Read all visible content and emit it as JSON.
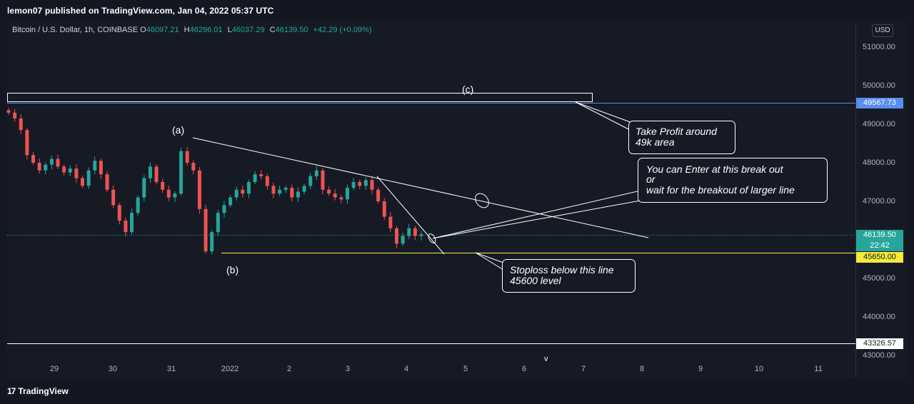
{
  "header": {
    "published": "lemon07 published on TradingView.com, Jan 04, 2022 05:37 UTC"
  },
  "symbol": {
    "name": "Bitcoin / U.S. Dollar, 1h, COINBASE",
    "o_label": "O",
    "o": "46097.21",
    "h_label": "H",
    "h": "46296.01",
    "l_label": "L",
    "l": "46037.29",
    "c_label": "C",
    "c": "46139.50",
    "change": "+42.29 (+0.09%)"
  },
  "axis": {
    "currency": "USD",
    "y_ticks": [
      "51000.00",
      "50000.00",
      "49000.00",
      "48000.00",
      "47000.00",
      "45000.00",
      "44000.00",
      "43000.00"
    ],
    "x_ticks": [
      "29",
      "30",
      "31",
      "2022",
      "2",
      "3",
      "4",
      "5",
      "6",
      "7",
      "8",
      "9",
      "10",
      "11"
    ]
  },
  "price_labels": {
    "blue": "49567.73",
    "current": "46139.50",
    "countdown": "22:42",
    "yellow": "45650.00",
    "white": "43326.57"
  },
  "annotations": {
    "wave_a": "(a)",
    "wave_b": "(b)",
    "wave_c": "(c)",
    "tp_line1": "Take Profit around",
    "tp_line2": "49k area",
    "enter_line1": "You can Enter at this break out",
    "enter_line2": "or",
    "enter_line3": "wait for the breakout of larger line",
    "sl_line1": "Stoploss below this line",
    "sl_line2": "45600 level",
    "cut_label": "v"
  },
  "footer": {
    "brand": "TradingView",
    "logo_mark": "17"
  },
  "colors": {
    "background": "#131722",
    "up": "#26a69a",
    "down": "#ef5350",
    "blue_line": "#5b8def",
    "yellow_line": "#f5eb3d",
    "white_line": "#ffffff"
  },
  "chart_data": {
    "type": "candlestick",
    "symbol": "Bitcoin / U.S. Dollar",
    "interval": "1h",
    "y_range": [
      42800,
      51600
    ],
    "x_categories": [
      "29",
      "30",
      "31",
      "2022",
      "2",
      "3",
      "4",
      "5",
      "6",
      "7",
      "8",
      "9",
      "10",
      "11"
    ],
    "horizontal_levels": [
      49567.73,
      45650.0,
      43326.57
    ],
    "last_price": 46139.5,
    "closes": [
      49300,
      49150,
      48850,
      48200,
      48000,
      47800,
      47950,
      48100,
      47900,
      47750,
      47850,
      47600,
      47400,
      47800,
      48050,
      47700,
      47300,
      46900,
      46500,
      46200,
      46700,
      47100,
      47600,
      47900,
      47500,
      47300,
      47100,
      47200,
      48300,
      48000,
      47800,
      46800,
      45700,
      46200,
      46700,
      46900,
      47100,
      47300,
      47200,
      47500,
      47700,
      47650,
      47400,
      47200,
      47300,
      47350,
      47100,
      47250,
      47400,
      47650,
      47800,
      47300,
      47200,
      47100,
      47050,
      47350,
      47500,
      47400,
      47550,
      47300,
      47000,
      46600,
      46300,
      45900,
      46100,
      46300,
      46100,
      46140
    ]
  }
}
